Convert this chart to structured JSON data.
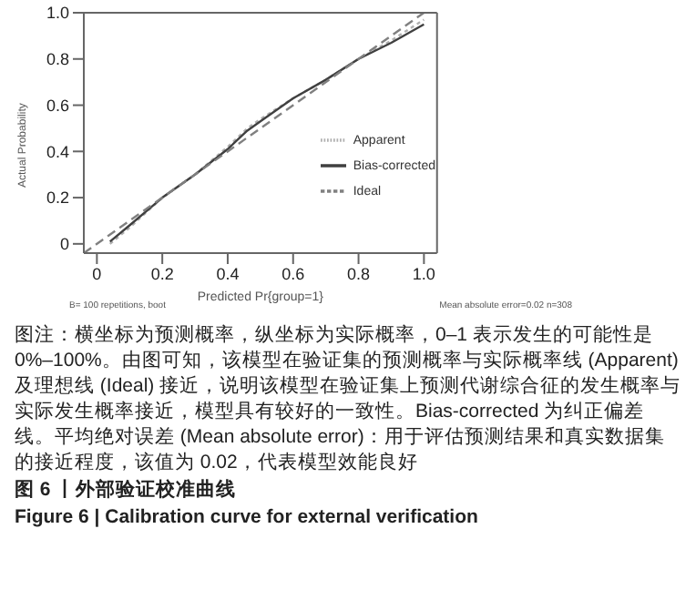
{
  "chart_data": {
    "type": "line",
    "title": "图 6 丨外部验证校准曲线",
    "subtitle": "Figure 6 | Calibration curve for external verification",
    "xlabel": "Predicted Pr{group=1}",
    "ylabel": "Actual Probability",
    "xlim": [
      -0.04,
      1.04
    ],
    "ylim": [
      -0.04,
      1.0
    ],
    "xticks": [
      0,
      0.2,
      0.4,
      0.6,
      0.8,
      {
        "value": 1,
        "label": "1.0"
      }
    ],
    "yticks": [
      0,
      0.2,
      0.4,
      0.6,
      0.8,
      {
        "value": 1,
        "label": "1.0"
      }
    ],
    "legend": "bottom right",
    "marker": "none",
    "series": [
      {
        "name": "Apparent",
        "color": "#b0b0b0",
        "line_style": "dotted",
        "x": [
          0.04,
          0.1,
          0.2,
          0.3,
          0.4,
          0.46,
          0.5,
          0.6,
          0.7,
          0.8,
          0.9,
          1.0
        ],
        "values": [
          0.0,
          0.07,
          0.2,
          0.3,
          0.42,
          0.5,
          0.54,
          0.63,
          0.71,
          0.8,
          0.88,
          0.97
        ]
      },
      {
        "name": "Bias-corrected",
        "color": "#404040",
        "line_style": "solid",
        "x": [
          0.04,
          0.1,
          0.2,
          0.3,
          0.4,
          0.46,
          0.5,
          0.6,
          0.7,
          0.8,
          0.9,
          1.0
        ],
        "values": [
          0.01,
          0.08,
          0.2,
          0.3,
          0.41,
          0.49,
          0.53,
          0.63,
          0.71,
          0.8,
          0.87,
          0.95
        ]
      },
      {
        "name": "Ideal",
        "color": "#808080",
        "line_style": "dashed",
        "x": [
          -0.04,
          1.0
        ],
        "values": [
          -0.04,
          1.0
        ]
      }
    ],
    "annotations": [
      "B= 100 repetitions, boot",
      "Mean absolute error=0.02 n=308",
      "图注：横坐标为预测概率，纵坐标为实际概率，0–1 表示发生的可能性是 0%–100%。由图可知，该模型在验证集的预测概率与实际概率线 (Apparent) 及理想线 (Ideal) 接近，说明该模型在验证集上预测代谢综合征的发生概率与实际发生概率接近，模型具有较好的一致性。Bias-corrected 为纠正偏差线。平均绝对误差 (Mean absolute error)：用于评估预测结果和真实数据集的接近程度，该值为 0.02，代表模型效能良好"
    ]
  }
}
